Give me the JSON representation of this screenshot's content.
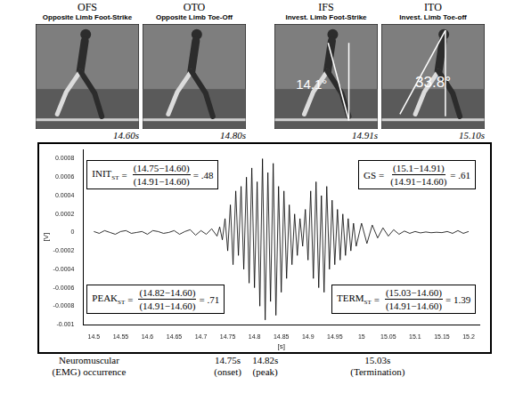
{
  "panels": [
    {
      "abbr": "OFS",
      "description": "Opposite Limb Foot-Strike",
      "time": "14.60s"
    },
    {
      "abbr": "OTO",
      "description": "Opposite Limb Toe-Off",
      "time": "14.80s"
    },
    {
      "abbr": "IFS",
      "description": "Invest. Limb Foot-Strike",
      "time": "14.91s",
      "angle": "14.1°"
    },
    {
      "abbr": "ITO",
      "description": "Invest. Limb Toe-off",
      "time": "15.10s",
      "angle": "33.8°"
    }
  ],
  "chart_data": {
    "type": "line",
    "x_label": "[s]",
    "y_label": "[V]",
    "color": "#000000",
    "grid": false,
    "x": [
      14.5,
      14.51,
      14.52,
      14.53,
      14.54,
      14.55,
      14.56,
      14.57,
      14.58,
      14.59,
      14.6,
      14.61,
      14.62,
      14.63,
      14.64,
      14.65,
      14.66,
      14.67,
      14.68,
      14.69,
      14.7,
      14.71,
      14.72,
      14.73,
      14.735,
      14.74,
      14.745,
      14.75,
      14.755,
      14.76,
      14.765,
      14.77,
      14.775,
      14.78,
      14.785,
      14.79,
      14.795,
      14.8,
      14.805,
      14.81,
      14.815,
      14.82,
      14.825,
      14.83,
      14.835,
      14.84,
      14.845,
      14.85,
      14.855,
      14.86,
      14.865,
      14.87,
      14.875,
      14.88,
      14.885,
      14.89,
      14.895,
      14.9,
      14.905,
      14.91,
      14.915,
      14.92,
      14.925,
      14.93,
      14.935,
      14.94,
      14.945,
      14.95,
      14.955,
      14.96,
      14.965,
      14.97,
      14.975,
      14.98,
      14.985,
      14.99,
      15,
      15.01,
      15.02,
      15.03,
      15.04,
      15.05,
      15.06,
      15.07,
      15.08,
      15.09,
      15.1,
      15.11,
      15.12,
      15.13,
      15.14,
      15.15,
      15.16,
      15.17,
      15.18,
      15.19,
      15.2
    ],
    "values": [
      1e-05,
      -1e-05,
      2e-05,
      0,
      -2e-05,
      1e-05,
      2e-05,
      -1e-05,
      0,
      1e-05,
      -2e-05,
      2e-05,
      1e-05,
      -1e-05,
      0,
      2e-05,
      -2e-05,
      1e-05,
      3e-05,
      -3e-05,
      2e-05,
      -2e-05,
      4e-05,
      -4e-05,
      6e-05,
      -8e-05,
      0.00015,
      -0.0002,
      0.0003,
      -0.00035,
      0.00045,
      -0.00025,
      0.0005,
      -0.0004,
      0.0006,
      -0.00055,
      0.0007,
      -0.0006,
      0.00055,
      -0.0008,
      0.0008,
      -0.00095,
      0.00065,
      -0.00075,
      0.00075,
      -0.0009,
      0.0005,
      -0.00065,
      0.00045,
      -0.0005,
      0.0003,
      -0.00035,
      0.0002,
      -0.00025,
      0.00015,
      -0.00015,
      0.00025,
      -0.0003,
      0.00045,
      -0.0005,
      0.00055,
      -0.0006,
      0.0004,
      -0.00065,
      0.0005,
      -0.0004,
      0.00035,
      -0.00035,
      0.00025,
      -0.0003,
      0.0002,
      -0.00025,
      0.00015,
      -0.0002,
      0.0001,
      -0.00015,
      0.0001,
      -0.00012,
      8e-05,
      -6e-05,
      5e-05,
      -4e-05,
      3e-05,
      -2e-05,
      1.5e-05,
      -1e-05,
      1e-05,
      -5e-06,
      5e-06,
      -3e-06,
      2e-06,
      -2e-06,
      1e-05,
      -1e-05,
      2e-05,
      -1e-05,
      1e-05
    ],
    "xlim": [
      14.48,
      15.22
    ],
    "xticks": [
      14.5,
      14.55,
      14.6,
      14.65,
      14.7,
      14.75,
      14.8,
      14.85,
      14.9,
      14.95,
      15,
      15.05,
      15.1,
      15.15,
      15.2
    ],
    "ylim": [
      -0.001,
      0.0009
    ],
    "yticks": [
      -0.001,
      -0.0008,
      -0.0006,
      -0.0004,
      -0.0002,
      0,
      0.0002,
      0.0004,
      0.0006,
      0.0008
    ],
    "annotations": [
      {
        "symbol": "INIT",
        "subscript": "ST",
        "equals": "=",
        "numerator": "(14.75−14.60)",
        "denominator": "(14.91−14.60)",
        "result": "= .48"
      },
      {
        "symbol": "GS",
        "subscript": "",
        "equals": "=",
        "numerator": "(15.1−14.91)",
        "denominator": "(14.91−14.60)",
        "result": "= .61"
      },
      {
        "symbol": "PEAK",
        "subscript": "ST",
        "equals": "=",
        "numerator": "(14.82−14.60)",
        "denominator": "(14.91−14.60)",
        "result": "= .71"
      },
      {
        "symbol": "TERM",
        "subscript": "ST",
        "equals": "=",
        "numerator": "(15.03−14.60)",
        "denominator": "(14.91−14.60)",
        "result": "= 1.39"
      }
    ]
  },
  "events": {
    "caption": [
      "Neuromuscular",
      "(EMG) occurrence"
    ],
    "markers": [
      {
        "time": 14.75,
        "label": "14.75s",
        "note": "(onset)"
      },
      {
        "time": 14.82,
        "label": "14.82s",
        "note": "(peak)"
      },
      {
        "time": 15.03,
        "label": "15.03s",
        "note": "(Termination)"
      }
    ]
  }
}
